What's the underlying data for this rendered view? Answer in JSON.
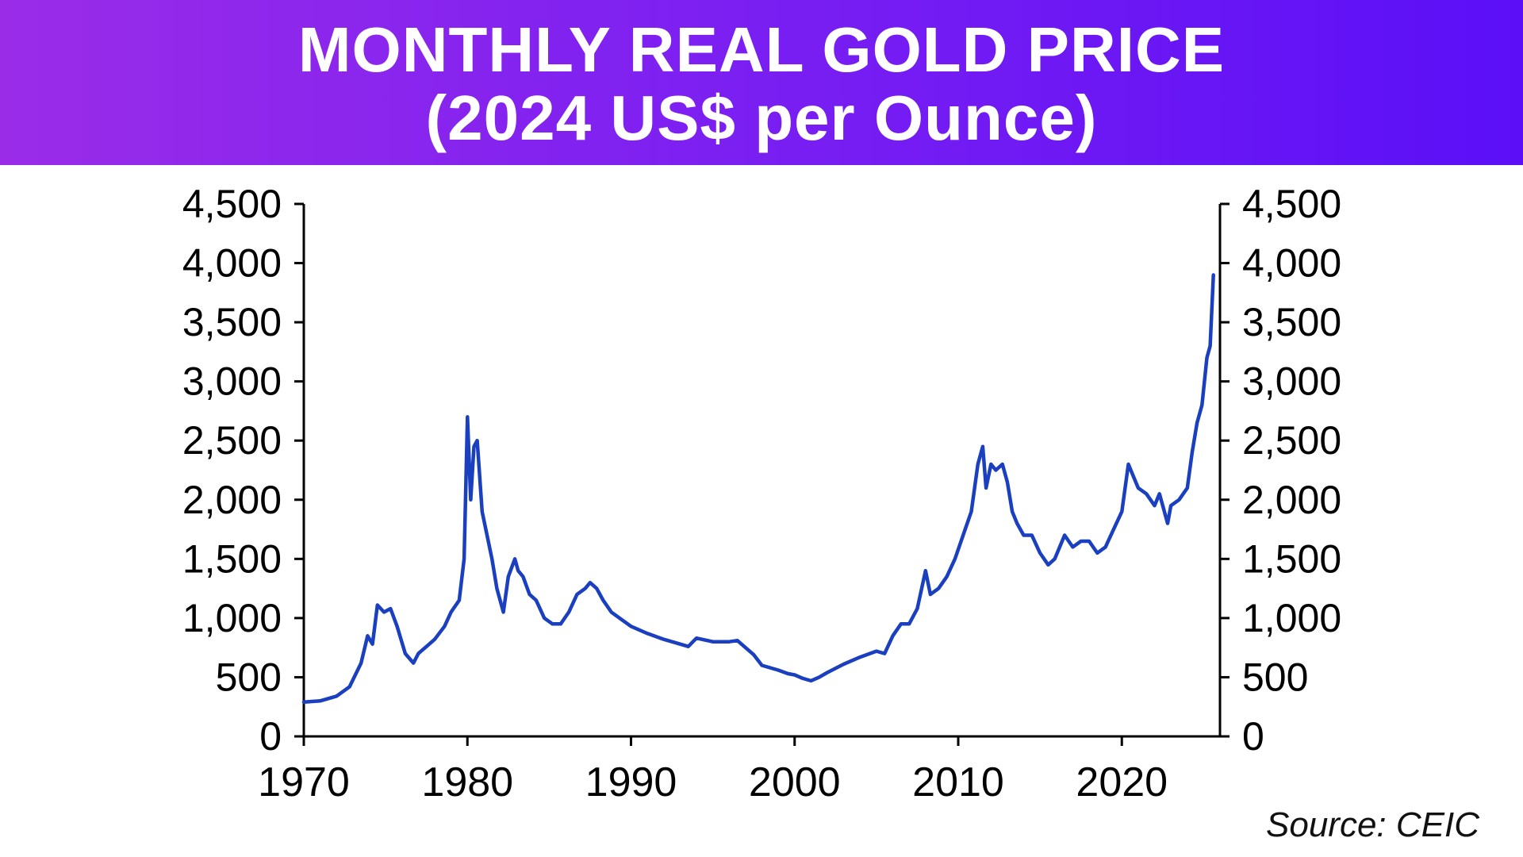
{
  "header": {
    "title_line1": "MONTHLY REAL GOLD PRICE",
    "title_line2": "(2024 US$ per Ounce)"
  },
  "source": "Source: CEIC",
  "chart_data": {
    "type": "line",
    "title": "MONTHLY REAL GOLD PRICE (2024 US$ per Ounce)",
    "xlabel": "",
    "ylabel": "",
    "xlim": [
      1970,
      2026
    ],
    "ylim": [
      0,
      4500
    ],
    "x_ticks": [
      1970,
      1980,
      1990,
      2000,
      2010,
      2020
    ],
    "x_tick_labels": [
      "1970",
      "1980",
      "1990",
      "2000",
      "2010",
      "2020"
    ],
    "y_ticks": [
      0,
      500,
      1000,
      1500,
      2000,
      2500,
      3000,
      3500,
      4000,
      4500
    ],
    "y_tick_labels": [
      "0",
      "500",
      "1,000",
      "1,500",
      "2,000",
      "2,500",
      "3,000",
      "3,500",
      "4,000",
      "4,500"
    ],
    "dual_y_axis": true,
    "grid": false,
    "line_color": "#1a3fbf",
    "series": [
      {
        "name": "",
        "x": [
          1970.0,
          1971.0,
          1972.0,
          1972.8,
          1973.5,
          1973.9,
          1974.2,
          1974.5,
          1974.9,
          1975.3,
          1975.7,
          1976.2,
          1976.7,
          1977.0,
          1977.5,
          1978.0,
          1978.6,
          1979.0,
          1979.5,
          1979.8,
          1980.0,
          1980.2,
          1980.4,
          1980.6,
          1980.9,
          1981.2,
          1981.5,
          1981.8,
          1982.2,
          1982.5,
          1982.9,
          1983.1,
          1983.4,
          1983.8,
          1984.2,
          1984.7,
          1985.2,
          1985.7,
          1986.2,
          1986.7,
          1987.2,
          1987.5,
          1987.9,
          1988.3,
          1988.8,
          1989.5,
          1990.0,
          1991.0,
          1992.0,
          1993.0,
          1993.5,
          1994.0,
          1995.0,
          1996.0,
          1996.5,
          1997.0,
          1997.5,
          1998.0,
          1999.0,
          1999.6,
          2000.0,
          2000.5,
          2001.0,
          2001.5,
          2002.0,
          2003.0,
          2004.0,
          2005.0,
          2005.5,
          2006.0,
          2006.5,
          2007.0,
          2007.5,
          2008.0,
          2008.3,
          2008.8,
          2009.3,
          2009.8,
          2010.3,
          2010.8,
          2011.2,
          2011.5,
          2011.7,
          2012.0,
          2012.3,
          2012.7,
          2013.0,
          2013.3,
          2013.6,
          2014.0,
          2014.5,
          2015.0,
          2015.5,
          2015.9,
          2016.5,
          2017.0,
          2017.5,
          2018.0,
          2018.5,
          2019.0,
          2019.5,
          2020.0,
          2020.4,
          2020.7,
          2021.0,
          2021.5,
          2022.0,
          2022.3,
          2022.8,
          2023.0,
          2023.5,
          2024.0,
          2024.3,
          2024.6,
          2024.9,
          2025.2,
          2025.4,
          2025.6
        ],
        "values": [
          290,
          300,
          340,
          420,
          620,
          850,
          780,
          1110,
          1050,
          1080,
          930,
          700,
          620,
          700,
          760,
          820,
          930,
          1050,
          1150,
          1500,
          2700,
          2000,
          2450,
          2500,
          1900,
          1700,
          1500,
          1250,
          1050,
          1350,
          1500,
          1400,
          1350,
          1200,
          1150,
          1000,
          950,
          950,
          1050,
          1200,
          1250,
          1300,
          1250,
          1150,
          1050,
          980,
          930,
          870,
          820,
          780,
          760,
          830,
          800,
          800,
          810,
          750,
          690,
          600,
          560,
          530,
          520,
          490,
          470,
          500,
          540,
          610,
          670,
          720,
          700,
          850,
          950,
          950,
          1080,
          1400,
          1200,
          1250,
          1350,
          1500,
          1700,
          1900,
          2300,
          2450,
          2100,
          2300,
          2250,
          2300,
          2150,
          1900,
          1800,
          1700,
          1700,
          1550,
          1450,
          1500,
          1700,
          1600,
          1650,
          1650,
          1550,
          1600,
          1750,
          1900,
          2300,
          2200,
          2100,
          2050,
          1950,
          2050,
          1800,
          1950,
          2000,
          2100,
          2400,
          2650,
          2800,
          3200,
          3300,
          3900
        ]
      }
    ]
  }
}
